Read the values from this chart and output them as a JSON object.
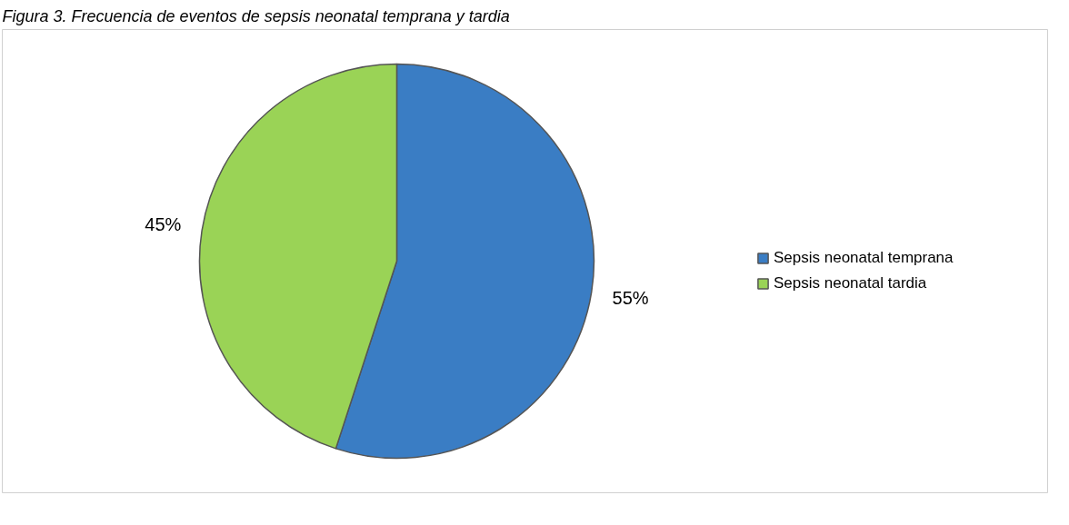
{
  "chart_data": {
    "type": "pie",
    "title": "Figura 3. Frecuencia de eventos de sepsis neonatal temprana y tardia",
    "categories": [
      "Sepsis neonatal temprana",
      "Sepsis neonatal tardia"
    ],
    "values": [
      55,
      45
    ],
    "colors": [
      "#3a7dc4",
      "#9ad356"
    ],
    "value_labels": [
      "55%",
      "45%"
    ],
    "legend": "right"
  }
}
